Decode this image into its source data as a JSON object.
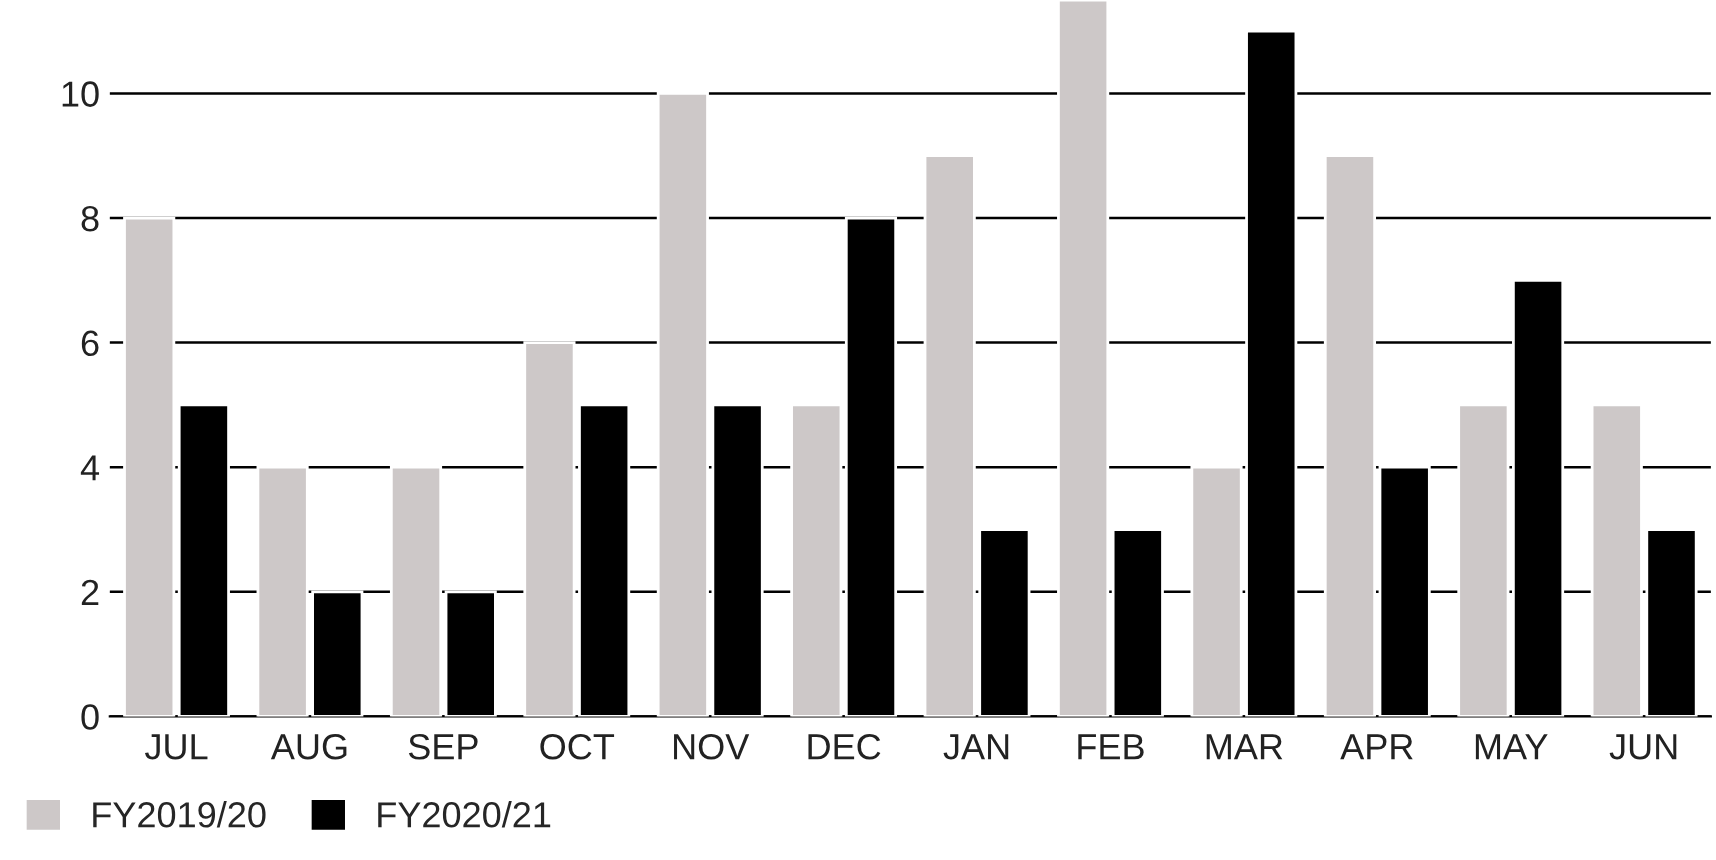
{
  "chart_data": {
    "type": "bar",
    "categories": [
      "JUL",
      "AUG",
      "SEP",
      "OCT",
      "NOV",
      "DEC",
      "JAN",
      "FEB",
      "MAR",
      "APR",
      "MAY",
      "JUN"
    ],
    "series": [
      {
        "name": "FY2019/20",
        "color": "#cdc8c8",
        "values": [
          8,
          4,
          4,
          6,
          10,
          5,
          9,
          11.5,
          4,
          9,
          5,
          5
        ]
      },
      {
        "name": "FY2020/21",
        "color": "#000000",
        "values": [
          5,
          2,
          2,
          5,
          5,
          8,
          3,
          3,
          11,
          4,
          7,
          3
        ]
      }
    ],
    "ylim": [
      0,
      11.5
    ],
    "yticks": [
      0,
      2,
      4,
      6,
      8,
      10
    ],
    "grid": "y",
    "legend": "bottom left"
  }
}
